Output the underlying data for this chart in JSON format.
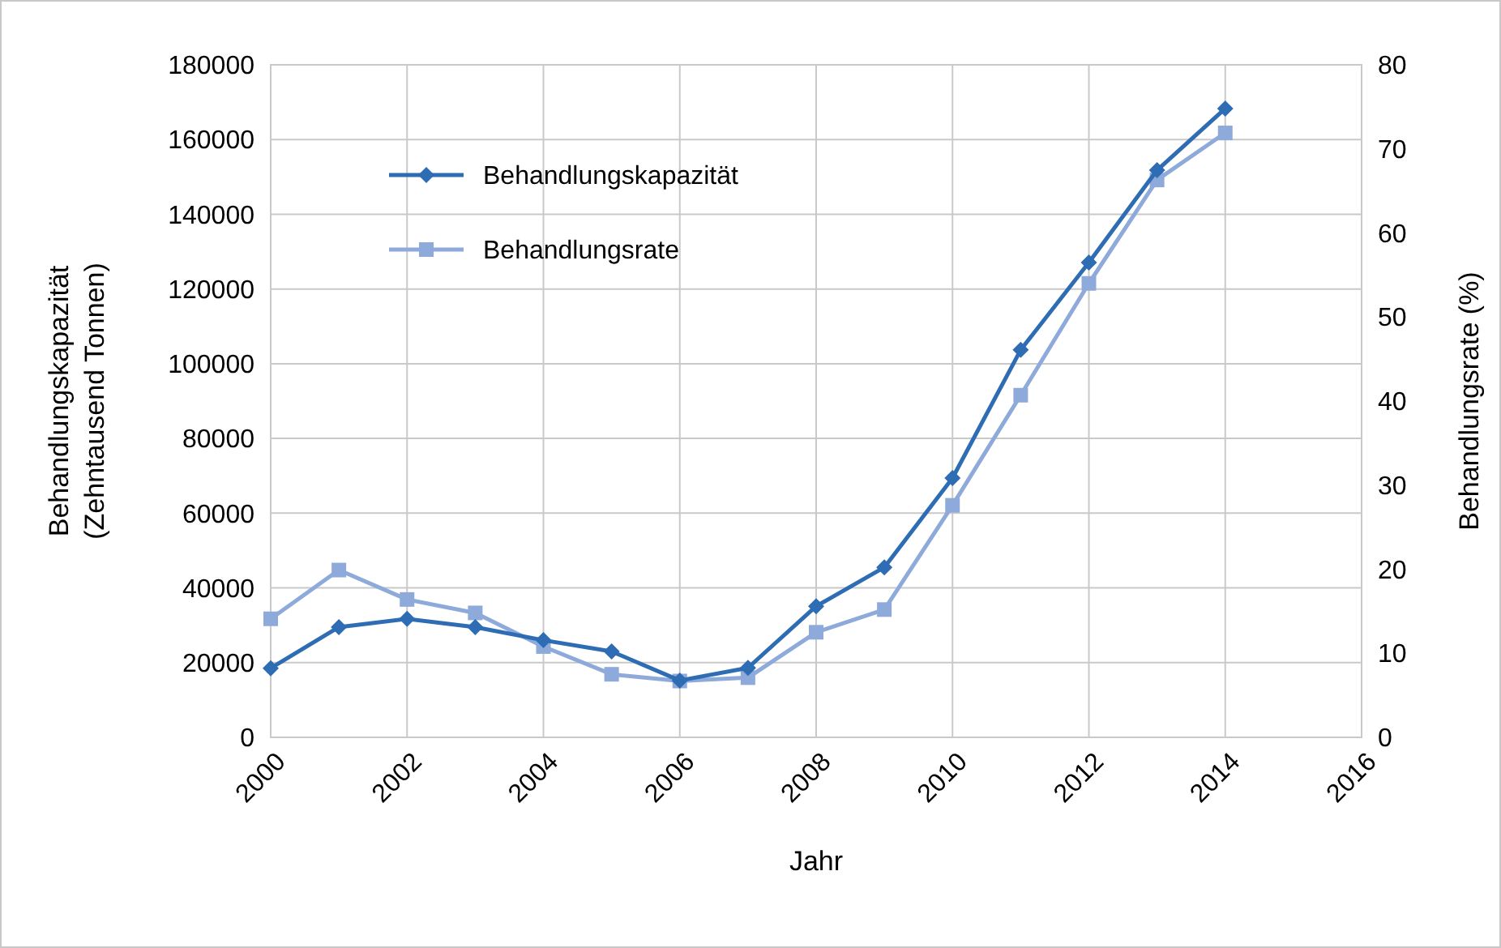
{
  "chart_data": {
    "type": "line",
    "xlabel": "Jahr",
    "ylabel": "Behandlungskapazität\n(Zehntausend Tonnen)",
    "y2label": "Behandlungsrate  (%)",
    "x": [
      2000,
      2001,
      2002,
      2003,
      2004,
      2005,
      2006,
      2007,
      2008,
      2009,
      2010,
      2011,
      2012,
      2013,
      2014
    ],
    "xlim": [
      2000,
      2016
    ],
    "xticks": [
      2000,
      2002,
      2004,
      2006,
      2008,
      2010,
      2012,
      2014,
      2016
    ],
    "ylim": [
      0,
      180000
    ],
    "yticks": [
      0,
      20000,
      40000,
      60000,
      80000,
      100000,
      120000,
      140000,
      160000,
      180000
    ],
    "y2lim": [
      0,
      80
    ],
    "y2ticks": [
      0,
      10,
      20,
      30,
      40,
      50,
      60,
      70,
      80
    ],
    "grid": true,
    "legend": "top left",
    "series": [
      {
        "name": "Behandlungskapazität",
        "color": "#2e6db4",
        "marker": "diamond",
        "values": [
          18500,
          29500,
          31700,
          29500,
          26000,
          23000,
          15200,
          18600,
          35100,
          45500,
          69400,
          103700,
          127100,
          151800,
          168300
        ]
      },
      {
        "name": "Behandlungsrate",
        "color": "#8eaadb",
        "marker": "square",
        "axis": "y2",
        "values": [
          14.1,
          19.9,
          16.4,
          14.8,
          10.8,
          7.5,
          6.7,
          7.1,
          12.5,
          15.2,
          27.6,
          40.7,
          54.0,
          66.3,
          71.9
        ]
      }
    ]
  }
}
